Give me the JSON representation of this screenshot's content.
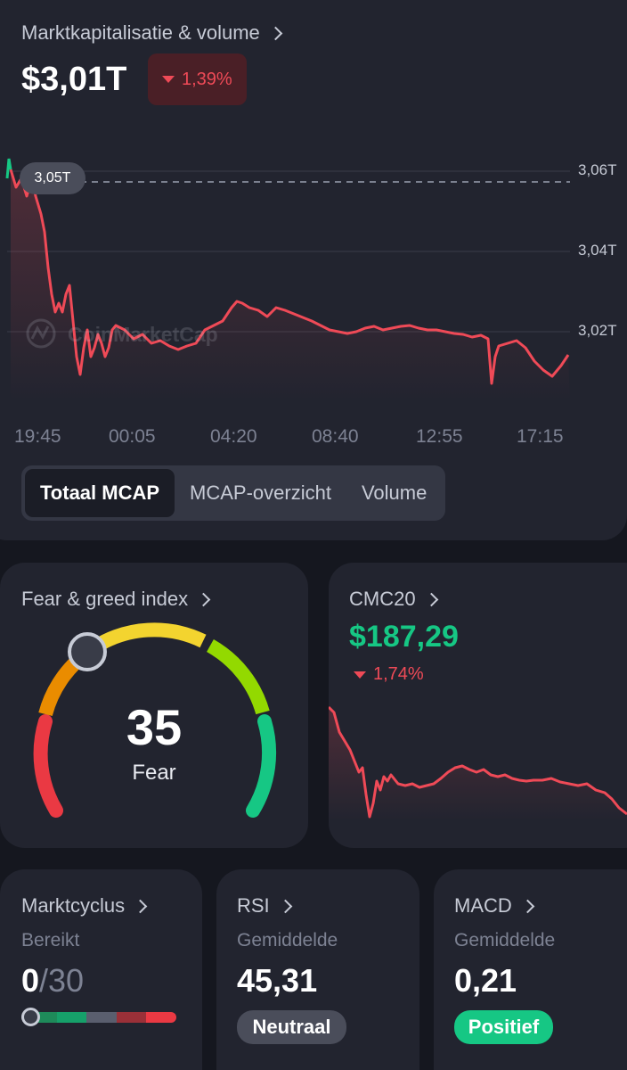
{
  "market_cap": {
    "title": "Marktkapitalisatie & volume",
    "value": "$3,01T",
    "change": "1,39%",
    "current_marker": "3,05T",
    "y_axis": [
      "3,06T",
      "3,04T",
      "3,02T"
    ],
    "x_axis": [
      "19:45",
      "00:05",
      "04:20",
      "08:40",
      "12:55",
      "17:15"
    ],
    "watermark": "CoinMarketCap",
    "tabs": [
      "Totaal MCAP",
      "MCAP-overzicht",
      "Volume"
    ],
    "active_tab": "Totaal MCAP"
  },
  "fear_greed": {
    "title": "Fear & greed index",
    "value": "35",
    "label": "Fear"
  },
  "cmc20": {
    "title": "CMC20",
    "value": "$187,29",
    "change": "1,74%"
  },
  "market_cycle": {
    "title": "Marktcyclus",
    "sub_label": "Bereikt",
    "value": "0",
    "total": "/30"
  },
  "rsi": {
    "title": "RSI",
    "sub_label": "Gemiddelde",
    "value": "45,31",
    "badge": "Neutraal"
  },
  "macd": {
    "title": "MACD",
    "sub_label": "Gemiddelde",
    "value": "0,21",
    "badge": "Positief"
  },
  "colors": {
    "negative": "#ef4a57",
    "positive": "#16c784",
    "card": "#22242f",
    "background": "#15171f"
  }
}
